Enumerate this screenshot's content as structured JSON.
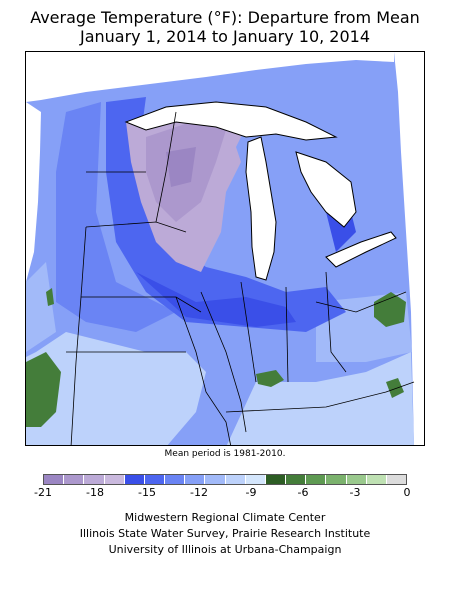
{
  "title_line1": "Average Temperature (°F): Departure from Mean",
  "title_line2": "January 1, 2014 to January 10, 2014",
  "mean_period_note": "Mean period is 1981-2010.",
  "legend": {
    "colors": [
      "#9b86c3",
      "#ac98cd",
      "#bcaad7",
      "#cab9de",
      "#3a4fe8",
      "#4d66f0",
      "#6a84f4",
      "#86a0f7",
      "#a2baf9",
      "#bdd2fb",
      "#d4e6fc",
      "#2d5d24",
      "#447d3a",
      "#5e9a52",
      "#7bb26d",
      "#9ac98d",
      "#bfe1b3",
      "#dcdcdc"
    ],
    "tick_labels": [
      "-21",
      "-18",
      "-15",
      "-12",
      "-9",
      "-6",
      "-3",
      "0"
    ],
    "tick_values": [
      -21,
      -18,
      -15,
      -12,
      -9,
      -6,
      -3,
      0
    ],
    "min": -21,
    "max": 0
  },
  "credits": [
    "Midwestern Regional Climate Center",
    "Illinois State Water Survey, Prairie Research Institute",
    "University of Illinois at Urbana-Champaign"
  ]
}
